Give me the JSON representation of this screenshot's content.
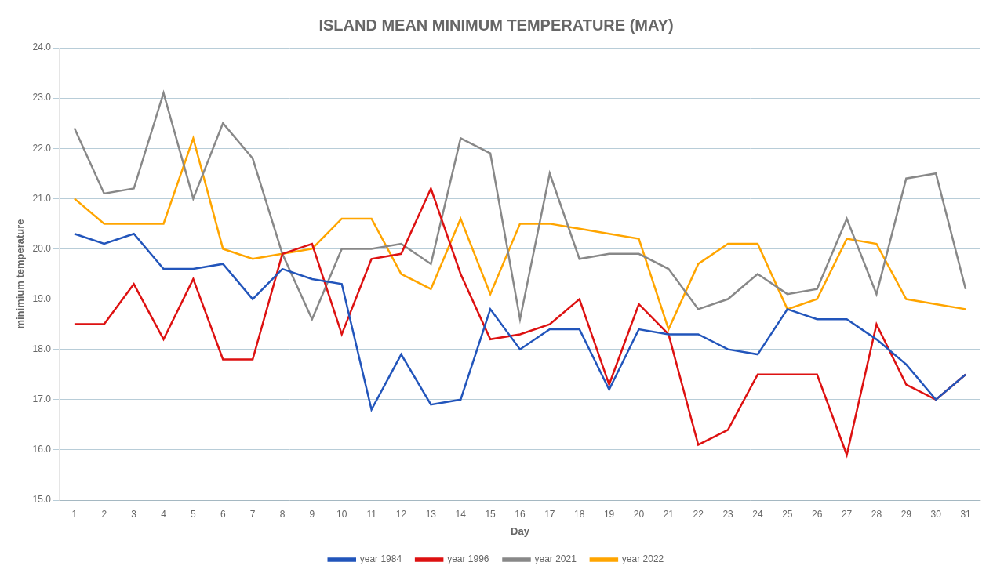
{
  "chart_data": {
    "type": "line",
    "title": "ISLAND MEAN MINIMUM TEMPERATURE (MAY)",
    "x_label": "Day",
    "y_label": "minimium temperature",
    "x": [
      1,
      2,
      3,
      4,
      5,
      6,
      7,
      8,
      9,
      10,
      11,
      12,
      13,
      14,
      15,
      16,
      17,
      18,
      19,
      20,
      21,
      22,
      23,
      24,
      25,
      26,
      27,
      28,
      29,
      30,
      31
    ],
    "series": [
      {
        "name": "year 1984",
        "color": "#2255BB",
        "values": [
          20.3,
          20.1,
          20.3,
          19.6,
          19.6,
          19.7,
          19.0,
          19.6,
          19.4,
          19.3,
          16.8,
          17.9,
          16.9,
          17.0,
          18.8,
          18.0,
          18.4,
          18.4,
          17.2,
          18.4,
          18.3,
          18.3,
          18.0,
          17.9,
          18.8,
          18.6,
          18.6,
          18.2,
          17.7,
          17.0,
          17.5
        ]
      },
      {
        "name": "year 1996",
        "color": "#DD1111",
        "values": [
          18.5,
          18.5,
          19.3,
          18.2,
          19.4,
          17.8,
          17.8,
          19.9,
          20.1,
          18.3,
          19.8,
          19.9,
          21.2,
          19.5,
          18.2,
          18.3,
          18.5,
          19.0,
          17.3,
          18.9,
          18.3,
          16.1,
          16.4,
          17.5,
          17.5,
          17.5,
          15.9,
          18.5,
          17.3,
          17.0,
          17.5
        ]
      },
      {
        "name": "year 2021",
        "color": "#888888",
        "values": [
          22.4,
          21.1,
          21.2,
          23.1,
          21.0,
          22.5,
          21.8,
          19.9,
          18.6,
          20.0,
          20.0,
          20.1,
          19.7,
          22.2,
          21.9,
          18.6,
          21.5,
          19.8,
          19.9,
          19.9,
          19.6,
          18.8,
          19.0,
          19.5,
          19.1,
          19.2,
          20.6,
          19.1,
          21.4,
          21.5,
          19.2
        ]
      },
      {
        "name": "year 2022",
        "color": "#FFA500",
        "values": [
          21.0,
          20.5,
          20.5,
          20.5,
          22.2,
          20.0,
          19.8,
          19.9,
          20.0,
          20.6,
          20.6,
          19.5,
          19.2,
          20.6,
          19.1,
          20.5,
          20.5,
          20.4,
          20.3,
          20.2,
          18.4,
          19.7,
          20.1,
          20.1,
          18.8,
          19.0,
          20.2,
          20.1,
          19.0,
          18.9,
          18.8
        ]
      }
    ],
    "xlim": [
      0.5,
      31.5
    ],
    "xticks": [
      1,
      2,
      3,
      4,
      5,
      6,
      7,
      8,
      9,
      10,
      11,
      12,
      13,
      14,
      15,
      16,
      17,
      18,
      19,
      20,
      21,
      22,
      23,
      24,
      25,
      26,
      27,
      28,
      29,
      30,
      31
    ],
    "ylim": [
      15.0,
      24.0
    ],
    "yticks": [
      {
        "value": 15,
        "label": "15.0"
      },
      {
        "value": 16,
        "label": "16.0"
      },
      {
        "value": 17,
        "label": "17.0"
      },
      {
        "value": 18,
        "label": "18.0"
      },
      {
        "value": 19,
        "label": "19.0"
      },
      {
        "value": 20,
        "label": "20.0"
      },
      {
        "value": 21,
        "label": "21.0"
      },
      {
        "value": 22,
        "label": "22.0"
      },
      {
        "value": 23,
        "label": "23.0"
      },
      {
        "value": 24,
        "label": "24.0"
      }
    ],
    "grid": "y",
    "legend": "bottom",
    "line_style": "solid",
    "marker": "none"
  }
}
